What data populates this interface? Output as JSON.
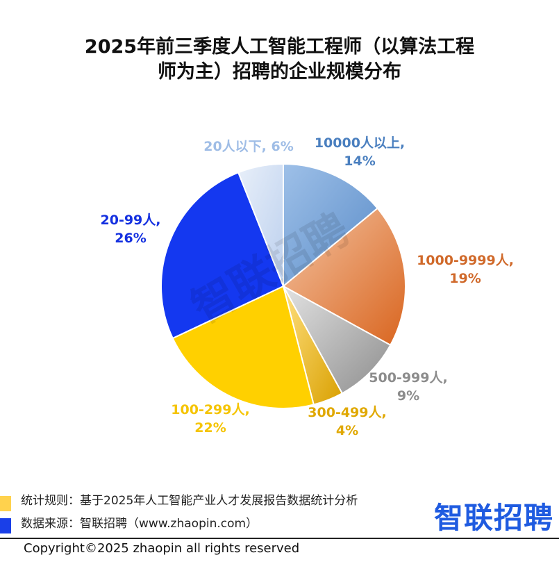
{
  "title_line1": "2025年前三季度人工智能工程师（以算法工程",
  "title_line2": "师为主）招聘的企业规模分布",
  "watermark": "智联招聘",
  "chart_data": {
    "type": "pie",
    "title": "2025年前三季度人工智能工程师（以算法工程师为主）招聘的企业规模分布",
    "slices": [
      {
        "label": "10000人以上",
        "value": 14,
        "color": "#6f9fd4",
        "label_color": "#4a7fbf"
      },
      {
        "label": "1000-9999人",
        "value": 19,
        "color": "#e07b3e",
        "label_color": "#d0692a"
      },
      {
        "label": "500-999人",
        "value": 9,
        "color": "#9a9a9a",
        "label_color": "#8c8c8c"
      },
      {
        "label": "300-499人",
        "value": 4,
        "color": "#e8b419",
        "label_color": "#e0a800"
      },
      {
        "label": "100-299人",
        "value": 22,
        "color": "#ffd000",
        "label_color": "#f5c400"
      },
      {
        "label": "20-99人",
        "value": 26,
        "color": "#1438f0",
        "label_color": "#1430e0"
      },
      {
        "label": "20人以下",
        "value": 6,
        "color": "#c9d9f2",
        "label_color": "#9fbde6"
      }
    ]
  },
  "footer": {
    "rule": "统计规则：基于2025年人工智能产业人才发展报告数据统计分析",
    "source": "数据来源：智联招聘（www.zhaopin.com）",
    "rule_color": "#ffd24d",
    "source_color": "#1a3fe8",
    "brand": "智联招聘",
    "copyright": "Copyright©2025 zhaopin all rights reserved"
  }
}
